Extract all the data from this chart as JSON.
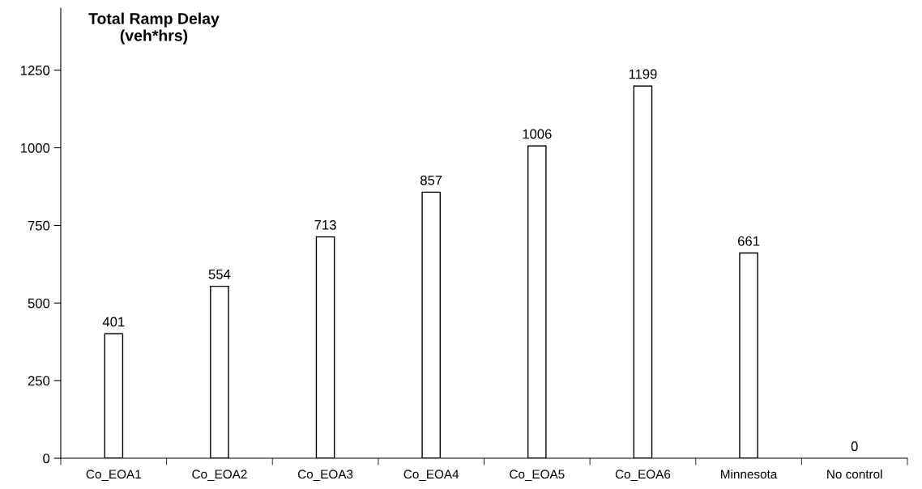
{
  "chart_data": {
    "type": "bar",
    "ylabel": "Total Ramp Delay\n(veh*hrs)",
    "categories": [
      "Co_EOA1",
      "Co_EOA2",
      "Co_EOA3",
      "Co_EOA4",
      "Co_EOA5",
      "Co_EOA6",
      "Minnesota",
      "No control"
    ],
    "values": [
      401,
      554,
      713,
      857,
      1006,
      1199,
      661,
      0
    ],
    "color": "#ffffff",
    "data_labels": true,
    "ylim": [
      0,
      1450
    ],
    "yticks": [
      0,
      250,
      500,
      750,
      1000,
      1250
    ],
    "grid": false
  }
}
